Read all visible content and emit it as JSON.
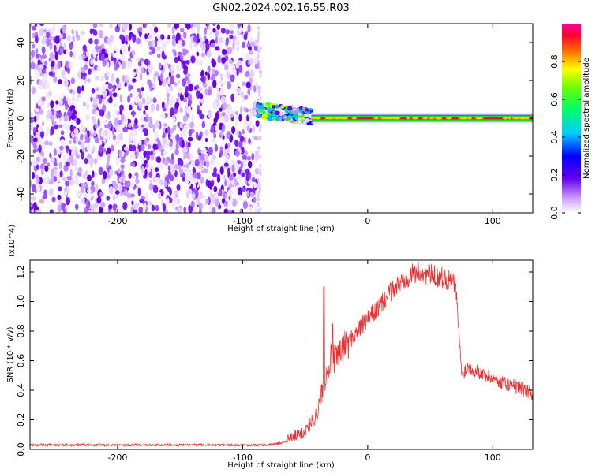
{
  "title": "GN02.2024.002.16.55.R03",
  "chart_data": [
    {
      "type": "heatmap",
      "xlabel": "Height of straight line (km)",
      "ylabel": "Frequency (Hz)",
      "xlim": [
        -270,
        132
      ],
      "ylim": [
        -50,
        50
      ],
      "xticks": [
        -200,
        -100,
        0,
        100
      ],
      "yticks": [
        -40,
        -20,
        0,
        20,
        40
      ],
      "colorbar": {
        "label": "Normalized spectral amplitude",
        "range": [
          0,
          1
        ],
        "ticks": [
          "0.0",
          "0.2",
          "0.4",
          "0.6",
          "0.8"
        ]
      },
      "regions": [
        {
          "x_from": -270,
          "x_to": -88,
          "description": "noise",
          "freq_spread": [
            -50,
            50
          ],
          "amplitude": 0.15
        },
        {
          "x_from": -88,
          "x_to": -45,
          "description": "signal",
          "freq_center_from": 4,
          "freq_center_to": 1,
          "amplitude": 0.5
        },
        {
          "x_from": -45,
          "x_to": 132,
          "description": "signal",
          "freq_center": 0,
          "amplitude": 0.95
        }
      ],
      "grid": false
    },
    {
      "type": "line",
      "xlabel": "Height of straight line (km)",
      "ylabel": "SNR (10 * v/v)",
      "y_multiplier": "(x10^4)",
      "xlim": [
        -270,
        132
      ],
      "ylim": [
        0,
        1.28
      ],
      "xticks": [
        -200,
        -100,
        0,
        100
      ],
      "yticks": [
        "0.0",
        "0.2",
        "0.4",
        "0.6",
        "0.8",
        "1.0",
        "1.2"
      ],
      "series": [
        {
          "color": "#ee3030",
          "x": [
            -270,
            -200,
            -100,
            -80,
            -70,
            -60,
            -50,
            -40,
            -35,
            -30,
            -25,
            -20,
            -10,
            0,
            10,
            20,
            30,
            40,
            50,
            60,
            70,
            73,
            75,
            80,
            90,
            100,
            110,
            120,
            132
          ],
          "values": [
            0.03,
            0.03,
            0.03,
            0.03,
            0.04,
            0.08,
            0.12,
            0.25,
            0.45,
            0.62,
            0.6,
            0.68,
            0.78,
            0.88,
            0.97,
            1.08,
            1.16,
            1.2,
            1.18,
            1.16,
            1.12,
            0.8,
            0.5,
            0.56,
            0.52,
            0.48,
            0.45,
            0.42,
            0.38
          ]
        }
      ],
      "spikes": [
        {
          "x": -35,
          "value": 1.1
        },
        {
          "x": -28,
          "value": 0.85
        }
      ],
      "grid": false
    }
  ]
}
